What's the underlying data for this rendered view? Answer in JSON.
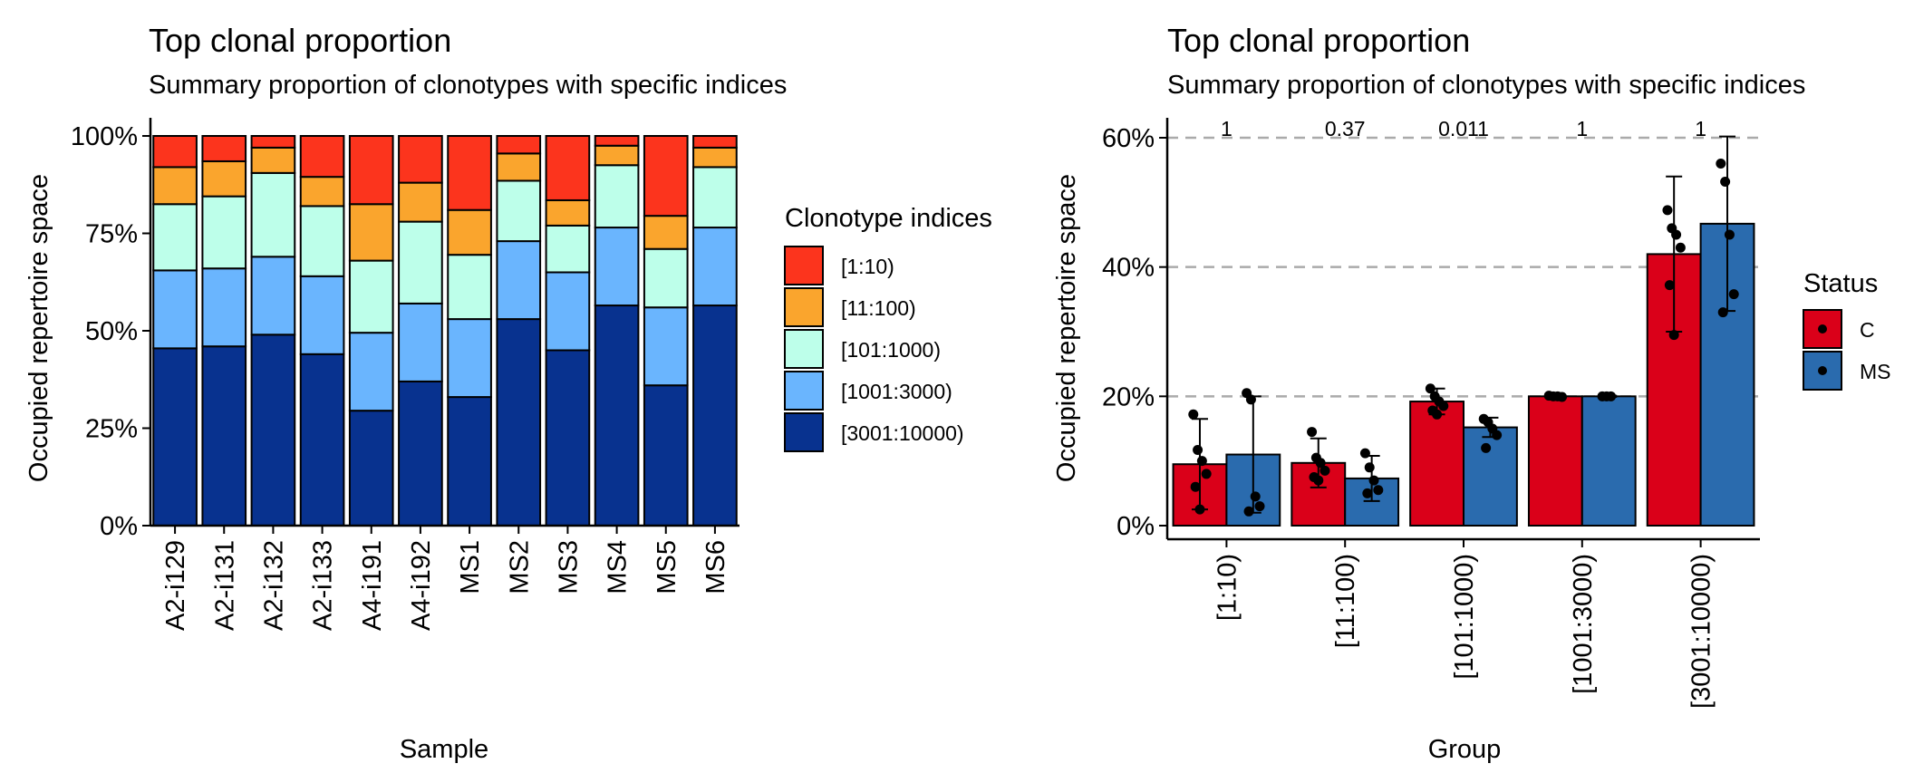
{
  "chart_data": [
    {
      "type": "bar",
      "stacked": true,
      "title": "Top clonal proportion",
      "subtitle": "Summary proportion of clonotypes with specific indices",
      "xlabel": "Sample",
      "ylabel": "Occupied repertoire space",
      "ylim": [
        0,
        1
      ],
      "y_ticks": [
        "0%",
        "25%",
        "50%",
        "75%",
        "100%"
      ],
      "categories": [
        "A2-i129",
        "A2-i131",
        "A2-i132",
        "A2-i133",
        "A4-i191",
        "A4-i192",
        "MS1",
        "MS2",
        "MS3",
        "MS4",
        "MS5",
        "MS6"
      ],
      "legend_title": "Clonotype indices",
      "legend_position": "right",
      "series": [
        {
          "name": "[3001:10000)",
          "color": "#08328F",
          "values": [
            0.455,
            0.46,
            0.49,
            0.44,
            0.295,
            0.37,
            0.33,
            0.53,
            0.45,
            0.565,
            0.36,
            0.565
          ]
        },
        {
          "name": "[1001:3000)",
          "color": "#6AB5FE",
          "values": [
            0.2,
            0.2,
            0.2,
            0.2,
            0.2,
            0.2,
            0.2,
            0.2,
            0.2,
            0.2,
            0.2,
            0.2
          ]
        },
        {
          "name": "[101:1000)",
          "color": "#BDFFEA",
          "values": [
            0.17,
            0.185,
            0.215,
            0.18,
            0.185,
            0.21,
            0.165,
            0.155,
            0.12,
            0.16,
            0.15,
            0.155
          ]
        },
        {
          "name": "[11:100)",
          "color": "#FAA52D",
          "values": [
            0.095,
            0.09,
            0.065,
            0.075,
            0.145,
            0.1,
            0.115,
            0.07,
            0.065,
            0.05,
            0.085,
            0.05
          ]
        },
        {
          "name": "[1:10)",
          "color": "#FC341D",
          "values": [
            0.08,
            0.065,
            0.03,
            0.105,
            0.175,
            0.12,
            0.19,
            0.045,
            0.165,
            0.025,
            0.205,
            0.03
          ]
        }
      ]
    },
    {
      "type": "bar",
      "grouped": true,
      "title": "Top clonal proportion",
      "subtitle": "Summary proportion of clonotypes with specific indices",
      "xlabel": "Group",
      "ylabel": "Occupied repertoire space",
      "ylim": [
        0,
        0.6
      ],
      "y_ticks": [
        "0%",
        "20%",
        "40%",
        "60%"
      ],
      "grid": "horizontal dashed",
      "categories": [
        "[1:10)",
        "[11:100)",
        "[101:1000)",
        "[1001:3000)",
        "[3001:10000)"
      ],
      "p_values": [
        "1",
        "0.37",
        "0.011",
        "1",
        "1"
      ],
      "legend_title": "Status",
      "legend_position": "right",
      "series": [
        {
          "name": "C",
          "color": "#DA0019",
          "values": [
            0.095,
            0.097,
            0.192,
            0.2,
            0.42
          ],
          "sd": [
            0.07,
            0.038,
            0.02,
            0.001,
            0.12
          ],
          "points": [
            [
              0.172,
              0.117,
              0.1,
              0.08,
              0.06,
              0.025
            ],
            [
              0.145,
              0.105,
              0.097,
              0.085,
              0.075,
              0.07
            ],
            [
              0.212,
              0.2,
              0.192,
              0.185,
              0.178,
              0.172
            ],
            [
              0.201,
              0.2,
              0.2,
              0.199
            ],
            [
              0.488,
              0.46,
              0.45,
              0.43,
              0.372,
              0.295
            ]
          ]
        },
        {
          "name": "MS",
          "color": "#2A6BAE",
          "values": [
            0.11,
            0.073,
            0.152,
            0.2,
            0.467
          ],
          "sd": [
            0.09,
            0.035,
            0.015,
            0.001,
            0.135
          ],
          "points": [
            [
              0.205,
              0.195,
              0.045,
              0.03,
              0.022
            ],
            [
              0.112,
              0.09,
              0.07,
              0.055,
              0.05
            ],
            [
              0.165,
              0.16,
              0.15,
              0.14,
              0.12
            ],
            [
              0.2,
              0.2,
              0.2
            ],
            [
              0.56,
              0.532,
              0.45,
              0.358,
              0.33
            ]
          ]
        }
      ]
    }
  ]
}
